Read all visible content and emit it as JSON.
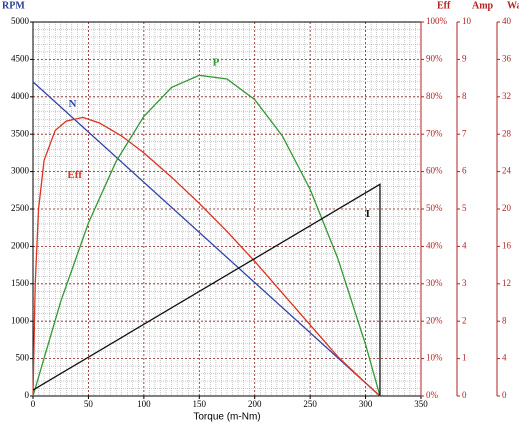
{
  "chart_data": {
    "type": "line",
    "x_label": "Torque (m-Nm)",
    "y_label": "RPM",
    "y2_label": "Eff",
    "y3_label": "Amp",
    "y4_label": "Watt",
    "xlim": [
      0,
      350
    ],
    "xticks": [
      0,
      50,
      100,
      150,
      200,
      250,
      300,
      350
    ],
    "ylim": [
      0,
      5000
    ],
    "yticks": [
      0,
      500,
      1000,
      1500,
      2000,
      2500,
      3000,
      3500,
      4000,
      4500,
      5000
    ],
    "y2lim": [
      0,
      100
    ],
    "y2ticks": [
      {
        "value": 0,
        "label": "0%"
      },
      {
        "value": 10,
        "label": "10%"
      },
      {
        "value": 20,
        "label": "20%"
      },
      {
        "value": 30,
        "label": "30%"
      },
      {
        "value": 40,
        "label": "40%"
      },
      {
        "value": 50,
        "label": "50%"
      },
      {
        "value": 60,
        "label": "60%"
      },
      {
        "value": 70,
        "label": "70%"
      },
      {
        "value": 80,
        "label": "80%"
      },
      {
        "value": 90,
        "label": "90%"
      },
      {
        "value": 100,
        "label": "100%"
      }
    ],
    "y3lim": [
      0,
      10
    ],
    "y3ticks": [
      0,
      1,
      2,
      3,
      4,
      5,
      6,
      7,
      8,
      9,
      10
    ],
    "y4lim": [
      0,
      40
    ],
    "y4ticks": [
      0,
      4,
      8,
      12,
      16,
      20,
      24,
      28,
      32,
      36,
      40
    ],
    "grid": true,
    "xminor": 10,
    "yminor": 5,
    "series": [
      {
        "name": "N",
        "color": "#3344aa",
        "axis": "y",
        "x": [
          0,
          313
        ],
        "values": [
          4200,
          0
        ]
      },
      {
        "name": "Eff",
        "color": "#dd3322",
        "axis": "y2",
        "x": [
          0,
          2,
          5,
          10,
          20,
          30,
          45,
          60,
          80,
          100,
          125,
          150,
          175,
          200,
          225,
          250,
          275,
          300,
          313
        ],
        "values": [
          0,
          30,
          50,
          63,
          71,
          73.5,
          74.5,
          73,
          69.5,
          65,
          58.5,
          51.5,
          44,
          36,
          27.5,
          19,
          10.5,
          3.5,
          0
        ]
      },
      {
        "name": "P",
        "color": "#339933",
        "axis": "y4",
        "x": [
          0,
          25,
          50,
          75,
          100,
          125,
          150,
          175,
          200,
          225,
          250,
          275,
          300,
          313
        ],
        "values": [
          0,
          10.1,
          18.5,
          25.1,
          29.9,
          33.0,
          34.3,
          33.9,
          31.7,
          27.8,
          22.1,
          14.7,
          5.5,
          0
        ]
      },
      {
        "name": "I",
        "color": "#111111",
        "axis": "y3",
        "x": [
          0,
          313,
          313
        ],
        "values": [
          0.16,
          5.66,
          0
        ]
      }
    ]
  }
}
